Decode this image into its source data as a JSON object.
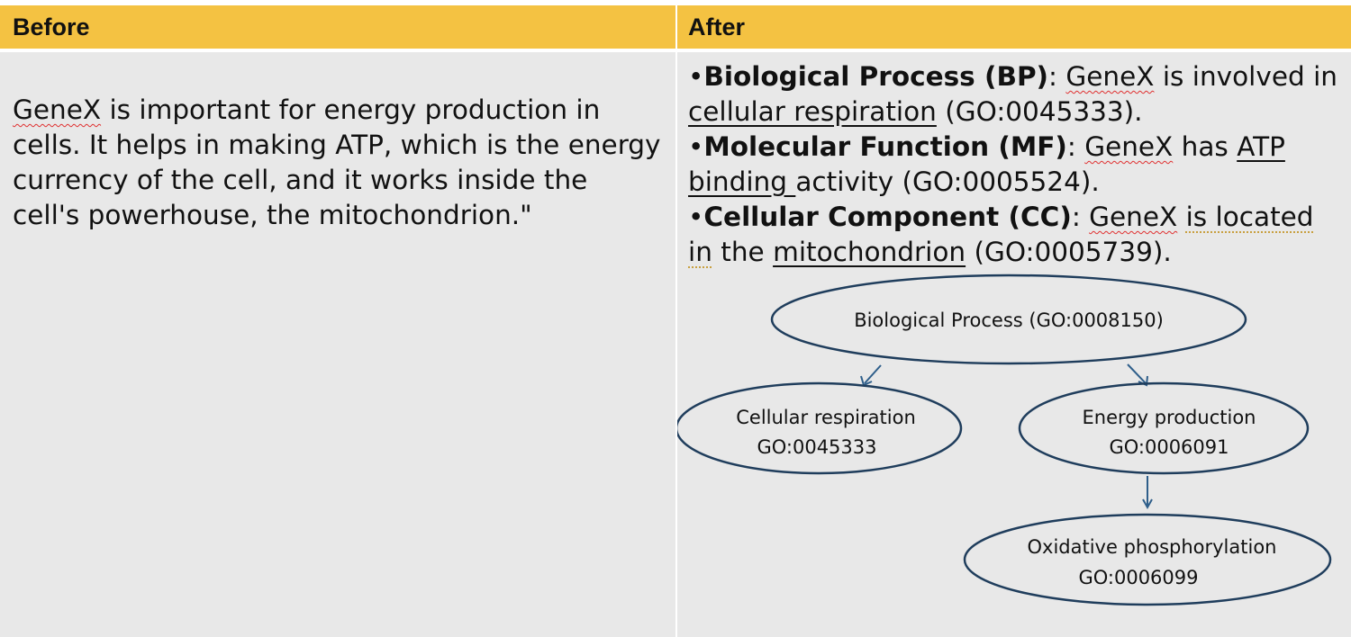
{
  "headers": {
    "before": "Before",
    "after": "After"
  },
  "before_text": {
    "w1": "GeneX",
    "rest": " is important for energy production in cells. It helps in making ATP, which is the energy currency of the cell, and it works inside the cell's powerhouse, the mitochondrion.\""
  },
  "after_lines": {
    "bp": {
      "bullet": "•",
      "label": "Biological Process (BP)",
      "colon": ": ",
      "gene": "GeneX",
      "t1": " is involved in",
      "term": "cellular respiration",
      "id": " (GO:0045333)."
    },
    "mf": {
      "bullet": "•",
      "label": "Molecular Function (MF)",
      "colon": ": ",
      "gene": "GeneX",
      "t1": " has ",
      "term1": "ATP",
      "term2": "binding ",
      "t2": "activity (GO:0005524)."
    },
    "cc": {
      "bullet": "•",
      "label": "Cellular Component (CC)",
      "colon": ": ",
      "gene": "GeneX",
      "t1": " ",
      "g1": "is located",
      "g2": "in",
      "t2": " the ",
      "term": "mitochondrion",
      "id": " (GO:0005739)."
    }
  },
  "diagram": {
    "root": {
      "line1": "Biological Process (GO:0008150)"
    },
    "n1": {
      "line1": "Cellular respiration",
      "line2": "GO:0045333"
    },
    "n2": {
      "line1": "Energy production",
      "line2": "GO:0006091"
    },
    "n3": {
      "line1": "Oxidative phosphorylation",
      "line2": "GO:0006099"
    },
    "edge_color": "#2e5e8a",
    "ellipse_stroke": "#1f3d5c"
  }
}
